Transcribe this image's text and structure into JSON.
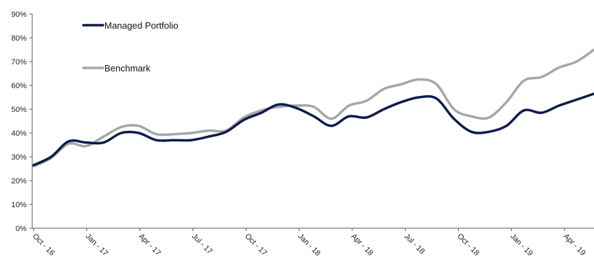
{
  "chart_data": {
    "type": "line",
    "title": "",
    "xlabel": "",
    "ylabel": "",
    "ylim": [
      0,
      90
    ],
    "yticks": [
      "0%",
      "10%",
      "20%",
      "30%",
      "40%",
      "50%",
      "60%",
      "70%",
      "80%",
      "90%"
    ],
    "xticks": [
      "Oct - 16",
      "Jan - 17",
      "Apr - 17",
      "Jul - 17",
      "Oct - 17",
      "Jan - 18",
      "Apr - 18",
      "Jul - 18",
      "Oct - 18",
      "Jan - 19",
      "Apr - 19"
    ],
    "grid": false,
    "legend_position": "top-left",
    "series": [
      {
        "name": "Managed Portfolio",
        "color": "#0d1b4c",
        "values": [
          26.5,
          30,
          36.5,
          36,
          36,
          40,
          40,
          37,
          37,
          37,
          38.5,
          40.5,
          45.5,
          48.5,
          52,
          50.5,
          47,
          43,
          47,
          46.5,
          50,
          53,
          55,
          54.5,
          46,
          40.5,
          40.5,
          43,
          49.5,
          48.5,
          51.5,
          54,
          56.5
        ]
      },
      {
        "name": "Benchmark",
        "color": "#a6a6a6",
        "values": [
          26,
          29.5,
          35.5,
          34.5,
          38.5,
          42.5,
          43,
          39.5,
          39.5,
          40,
          41,
          41,
          46.5,
          49.5,
          51,
          51.5,
          51,
          46,
          51.5,
          53.5,
          58.5,
          60.5,
          62.5,
          60.5,
          50,
          47,
          46.5,
          53,
          62,
          63.5,
          67.5,
          70,
          75
        ]
      }
    ]
  }
}
